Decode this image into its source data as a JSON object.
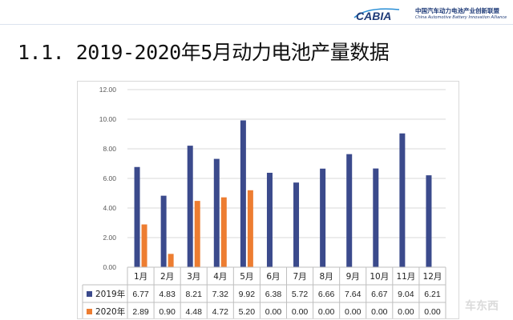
{
  "header": {
    "logo_text": "CABIA",
    "org_name_cn": "中国汽车动力电池产业创新联盟",
    "org_name_en": "China Automotive Battery Innovation Alliance"
  },
  "page_title": "1.1. 2019-2020年5月动力电池产量数据",
  "watermark": "车东西",
  "colors": {
    "series_2019": "#3b4a8c",
    "series_2020": "#ed7d31"
  },
  "chart_data": {
    "type": "bar",
    "categories": [
      "1月",
      "2月",
      "3月",
      "4月",
      "5月",
      "6月",
      "7月",
      "8月",
      "9月",
      "10月",
      "11月",
      "12月"
    ],
    "series": [
      {
        "name": "2019年",
        "values": [
          6.77,
          4.83,
          8.21,
          7.32,
          9.92,
          6.38,
          5.72,
          6.66,
          7.64,
          6.67,
          9.04,
          6.21
        ],
        "labels": [
          "6.77",
          "4.83",
          "8.21",
          "7.32",
          "9.92",
          "6.38",
          "5.72",
          "6.66",
          "7.64",
          "6.67",
          "9.04",
          "6.21"
        ]
      },
      {
        "name": "2020年",
        "values": [
          2.89,
          0.9,
          4.48,
          4.72,
          5.2,
          0.0,
          0.0,
          0.0,
          0.0,
          0.0,
          0.0,
          0.0
        ],
        "labels": [
          "2.89",
          "0.90",
          "4.48",
          "4.72",
          "5.20",
          "0.00",
          "0.00",
          "0.00",
          "0.00",
          "0.00",
          "0.00",
          "0.00"
        ]
      }
    ],
    "ylim": [
      0,
      12
    ],
    "yticks": [
      "0.00",
      "2.00",
      "4.00",
      "6.00",
      "8.00",
      "10.00",
      "12.00"
    ],
    "grid": true,
    "legend": "data-table"
  }
}
